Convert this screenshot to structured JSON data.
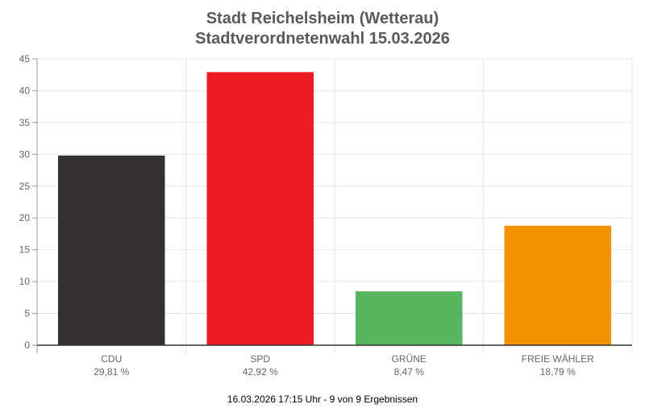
{
  "chart_data": {
    "type": "bar",
    "title": [
      "Stadt Reichelsheim (Wetterau)",
      "Stadtverordnetenwahl 15.03.2026"
    ],
    "categories": [
      "CDU",
      "SPD",
      "GRÜNE",
      "FREIE WÄHLER"
    ],
    "value_labels": [
      "29,81 %",
      "42,92 %",
      "8,47 %",
      "18,79 %"
    ],
    "values": [
      29.81,
      42.92,
      8.47,
      18.79
    ],
    "colors": [
      "#333132",
      "#ed1c24",
      "#57b45f",
      "#f39200"
    ],
    "ylim": [
      0,
      45
    ],
    "yticks": [
      0,
      5,
      10,
      15,
      20,
      25,
      30,
      35,
      40,
      45
    ],
    "grid": true,
    "footer": "16.03.2026 17:15 Uhr - 9 von 9 Ergebnissen"
  }
}
